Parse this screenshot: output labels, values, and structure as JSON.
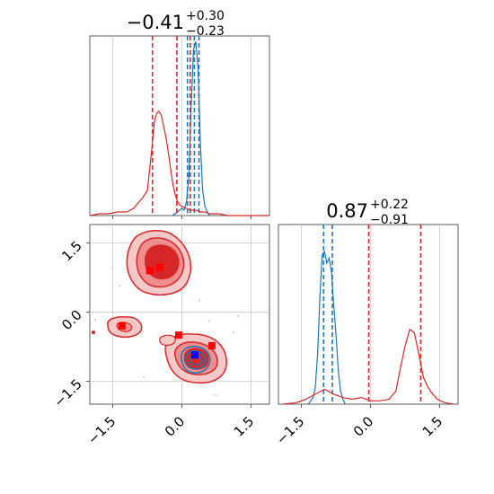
{
  "chart_data": [
    {
      "type": "histogram",
      "panel": "x-marginal",
      "title_main": "−0.41",
      "title_sup": "+0.30",
      "title_sub": "−0.23",
      "xlim": [
        -2.0,
        1.9
      ],
      "series": [
        {
          "name": "",
          "color": "#1f77b4",
          "bin_centers": [
            -0.2,
            -0.15,
            -0.1,
            -0.05,
            0.0,
            0.05,
            0.1,
            0.15,
            0.2,
            0.25,
            0.3,
            0.35,
            0.4,
            0.45,
            0.5,
            0.55,
            0.6
          ],
          "values": [
            0,
            1,
            2,
            3,
            4,
            3,
            8,
            22,
            60,
            92,
            97,
            82,
            40,
            14,
            5,
            2,
            0
          ],
          "quantile_lines": [
            0.12,
            0.27,
            0.37
          ]
        },
        {
          "name": "",
          "color": "#d62728",
          "bin_centers": [
            -2.0,
            -1.8,
            -1.6,
            -1.4,
            -1.2,
            -1.05,
            -0.95,
            -0.85,
            -0.75,
            -0.7,
            -0.65,
            -0.6,
            -0.55,
            -0.5,
            -0.45,
            -0.4,
            -0.35,
            -0.3,
            -0.25,
            -0.2,
            -0.15,
            -0.1,
            -0.05,
            0.0,
            0.1,
            0.2,
            0.3,
            0.4,
            0.5,
            0.6,
            0.7,
            0.8,
            1.0,
            1.3,
            1.6,
            1.9
          ],
          "values": [
            0,
            1,
            1,
            2,
            2,
            4,
            7,
            10,
            14,
            26,
            38,
            52,
            57,
            58,
            56,
            50,
            44,
            36,
            27,
            18,
            12,
            8,
            6,
            5,
            4,
            3,
            3,
            2,
            2,
            1,
            1,
            1,
            0,
            0,
            0,
            0
          ],
          "quantile_lines": [
            -0.64,
            -0.11,
            0.18
          ]
        }
      ],
      "xticks": [
        -1.5,
        0.0,
        1.5
      ]
    },
    {
      "type": "contour",
      "panel": "joint",
      "xlim": [
        -2.0,
        1.9
      ],
      "ylim": [
        -2.0,
        1.9
      ],
      "xticks": [
        "−1.5",
        "0.0",
        "1.5"
      ],
      "yticks": [
        "1.5",
        "0.0",
        "−1.5"
      ],
      "xtick_values": [
        -1.5,
        0.0,
        1.5
      ],
      "ytick_values": [
        1.5,
        0.0,
        -1.5
      ],
      "red_markers": [
        [
          -0.7,
          0.9
        ],
        [
          -0.48,
          0.97
        ],
        [
          -1.3,
          -0.3
        ],
        [
          -0.07,
          -0.5
        ],
        [
          0.65,
          -0.73
        ]
      ],
      "blue_marker": [
        0.28,
        -0.93
      ],
      "colors": {
        "red": "#d62728",
        "blue": "#1f77b4"
      }
    },
    {
      "type": "histogram",
      "panel": "y-marginal",
      "title_main": "0.87",
      "title_sup": "+0.22",
      "title_sub": "−0.91",
      "xlim": [
        -2.0,
        1.9
      ],
      "xticks": [
        "−1.5",
        "0.0",
        "1.5"
      ],
      "xtick_values": [
        -1.5,
        0.0,
        1.5
      ],
      "series": [
        {
          "name": "",
          "color": "#1f77b4",
          "bin_centers": [
            -1.35,
            -1.3,
            -1.25,
            -1.2,
            -1.15,
            -1.1,
            -1.05,
            -1.0,
            -0.95,
            -0.9,
            -0.85,
            -0.8,
            -0.75,
            -0.7,
            -0.65,
            -0.6,
            -0.55
          ],
          "values": [
            0,
            2,
            4,
            10,
            30,
            65,
            90,
            92,
            85,
            88,
            80,
            60,
            42,
            20,
            8,
            3,
            0
          ],
          "quantile_lines": [
            -1.02,
            -0.83
          ]
        },
        {
          "name": "",
          "color": "#d62728",
          "bin_centers": [
            -1.9,
            -1.6,
            -1.4,
            -1.2,
            -1.0,
            -0.8,
            -0.6,
            -0.4,
            -0.2,
            0.0,
            0.2,
            0.4,
            0.55,
            0.65,
            0.75,
            0.85,
            0.95,
            1.05,
            1.15,
            1.25,
            1.35,
            1.45,
            1.6,
            1.8
          ],
          "values": [
            0,
            1,
            3,
            6,
            9,
            6,
            4,
            3,
            4,
            2,
            2,
            3,
            8,
            22,
            35,
            45,
            43,
            30,
            16,
            10,
            6,
            3,
            1,
            0
          ],
          "quantile_lines": [
            -0.04,
            1.09
          ]
        }
      ]
    }
  ]
}
